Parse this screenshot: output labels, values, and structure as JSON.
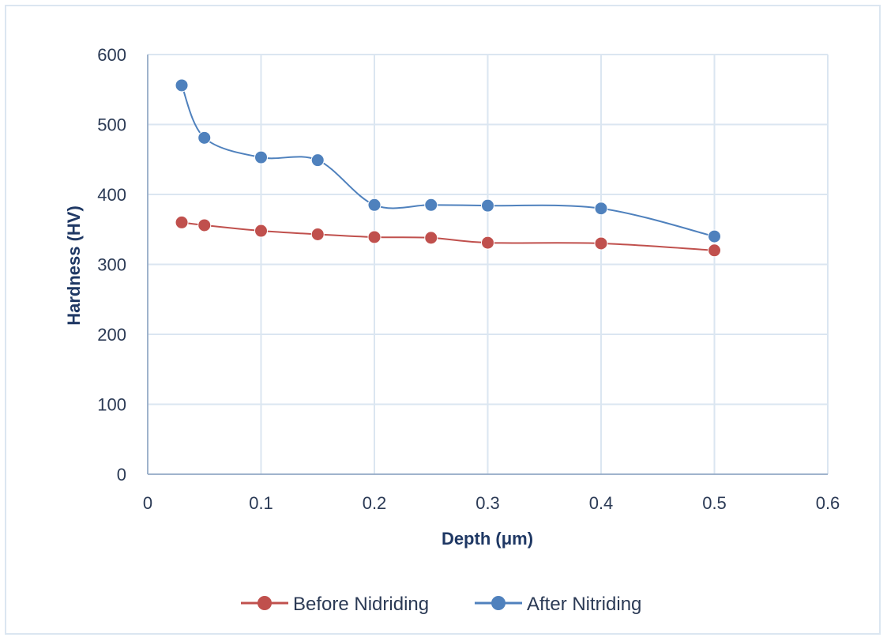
{
  "chart_data": {
    "type": "line",
    "title": "",
    "xlabel": "Depth (μm)",
    "ylabel": "Hardness (HV)",
    "xlim": [
      0,
      0.6
    ],
    "ylim": [
      0,
      600
    ],
    "xticks": [
      "0",
      "0.1",
      "0.2",
      "0.3",
      "0.4",
      "0.5",
      "0.6"
    ],
    "yticks": [
      "0",
      "100",
      "200",
      "300",
      "400",
      "500",
      "600"
    ],
    "grid": true,
    "legend_position": "bottom",
    "series": [
      {
        "name": "Before Nidriding",
        "color": "#c0504d",
        "x": [
          0.03,
          0.05,
          0.1,
          0.15,
          0.2,
          0.25,
          0.3,
          0.4,
          0.5
        ],
        "y": [
          360,
          356,
          348,
          343,
          339,
          338,
          331,
          330,
          320
        ]
      },
      {
        "name": "After Nitriding",
        "color": "#4f81bd",
        "x": [
          0.03,
          0.05,
          0.1,
          0.15,
          0.2,
          0.25,
          0.3,
          0.4,
          0.5
        ],
        "y": [
          556,
          481,
          453,
          449,
          385,
          385,
          384,
          380,
          340
        ]
      }
    ]
  }
}
